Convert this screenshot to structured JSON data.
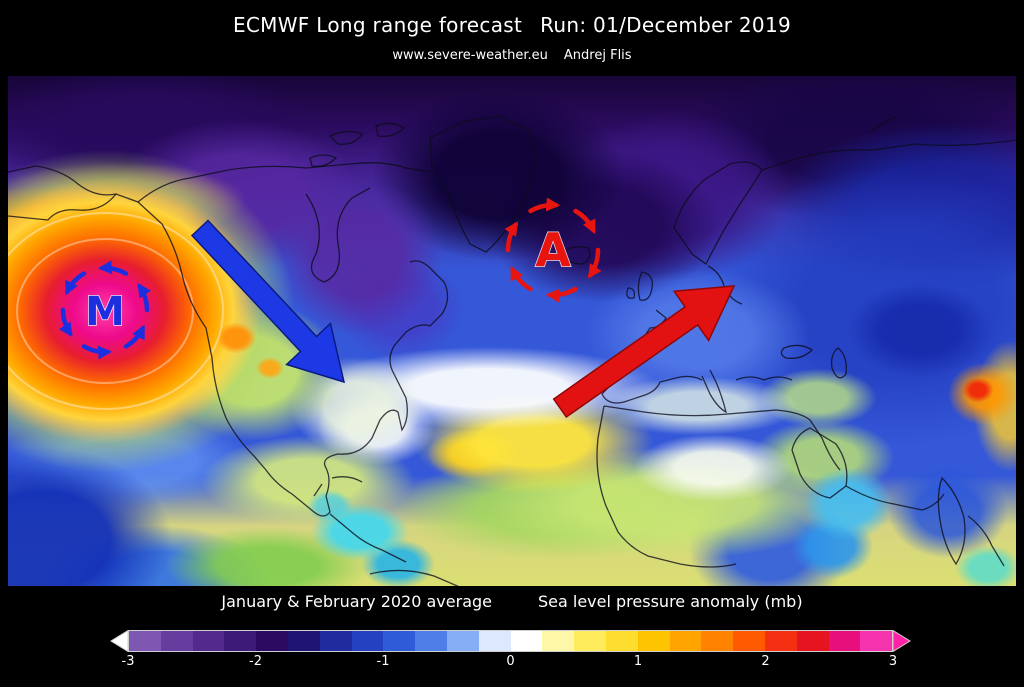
{
  "header": {
    "title_left": "ECMWF Long range forecast",
    "title_right": "Run: 01/December 2019",
    "site": "www.severe-weather.eu",
    "author": "Andrej Flis"
  },
  "map": {
    "marker_m": {
      "label": "M",
      "color": "#1c2fe0"
    },
    "marker_a": {
      "label": "A",
      "color": "#e8140f"
    },
    "blue_arrow_color": "#1d39e6",
    "red_arrow_color": "#e21212"
  },
  "legend": {
    "caption_period": "January & February 2020 average",
    "caption_variable": "Sea level pressure anomaly (mb)",
    "unit": "mb",
    "range": [
      -3,
      3
    ],
    "ticks": [
      "-3",
      "-2",
      "-1",
      "0",
      "1",
      "2",
      "3"
    ],
    "segments": [
      "#7e57b2",
      "#663d9e",
      "#522a8c",
      "#3e1a78",
      "#2c0a62",
      "#1e1474",
      "#202b9e",
      "#2341c0",
      "#2f5bd8",
      "#4f7ee8",
      "#86aef4",
      "#dce8fc",
      "#ffffff",
      "#fff7a8",
      "#ffec5c",
      "#ffdd2e",
      "#ffc400",
      "#ffa400",
      "#ff8200",
      "#ff5a00",
      "#f52f12",
      "#e51420",
      "#e60f7c",
      "#f633ae"
    ],
    "under_arrow_color": "#ffffff",
    "over_arrow_color": "#ff22a6"
  }
}
